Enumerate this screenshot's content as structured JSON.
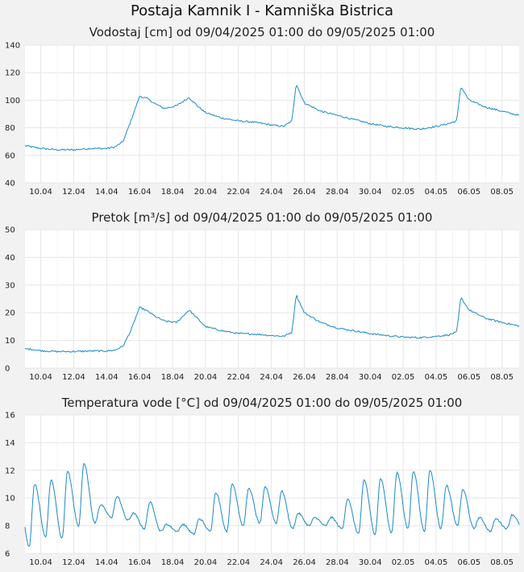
{
  "title": "Postaja Kamnik I - Kamniška Bistrica",
  "charts": [
    {
      "subtitle": "Vodostaj [cm] od 09/04/2025 01:00 do 09/05/2025 01:00"
    },
    {
      "subtitle": "Pretok [m³/s] od 09/04/2025 01:00 do 09/05/2025 01:00"
    },
    {
      "subtitle": "Temperatura vode [°C] od 09/04/2025 01:00 do 09/05/2025 01:00"
    }
  ],
  "chart_data": [
    {
      "type": "line",
      "title": "Vodostaj [cm] od 09/04/2025 01:00 do 09/05/2025 01:00",
      "x_range": [
        "2025-04-09T01:00",
        "2025-05-09T01:00"
      ],
      "ylim": [
        40,
        140
      ],
      "y_ticks": [
        40,
        60,
        80,
        100,
        120,
        140
      ],
      "x_tick_labels": [
        "10.04",
        "12.04",
        "14.04",
        "16.04",
        "18.04",
        "20.04",
        "22.04",
        "24.04",
        "26.04",
        "28.04",
        "30.04",
        "02.05",
        "04.05",
        "06.05",
        "08.05"
      ],
      "grid": true,
      "line_color": "#1a8ac8",
      "series": [
        {
          "x": [
            "2025-04-09T01:00",
            "2025-04-09T12:00",
            "2025-04-10T00:00",
            "2025-04-11T00:00",
            "2025-04-12T00:00",
            "2025-04-13T00:00",
            "2025-04-14T00:00",
            "2025-04-14T12:00",
            "2025-04-15T00:00",
            "2025-04-15T12:00",
            "2025-04-16T00:00",
            "2025-04-16T12:00",
            "2025-04-17T00:00",
            "2025-04-17T12:00",
            "2025-04-18T06:00",
            "2025-04-19T00:00",
            "2025-04-19T12:00",
            "2025-04-20T00:00",
            "2025-04-21T00:00",
            "2025-04-22T00:00",
            "2025-04-23T00:00",
            "2025-04-24T00:00",
            "2025-04-24T18:00",
            "2025-04-25T06:00",
            "2025-04-25T12:00",
            "2025-04-26T00:00",
            "2025-04-27T00:00",
            "2025-04-28T00:00",
            "2025-04-29T00:00",
            "2025-04-30T00:00",
            "2025-05-01T00:00",
            "2025-05-02T00:00",
            "2025-05-03T00:00",
            "2025-05-04T00:00",
            "2025-05-04T18:00",
            "2025-05-05T06:00",
            "2025-05-05T12:00",
            "2025-05-06T00:00",
            "2025-05-07T00:00",
            "2025-05-08T00:00",
            "2025-05-09T01:00"
          ],
          "y": [
            67,
            66,
            65,
            64,
            64,
            65,
            65,
            66,
            70,
            86,
            103,
            101,
            97,
            94,
            96,
            102,
            96,
            91,
            87,
            85,
            84,
            82,
            81,
            85,
            112,
            98,
            92,
            89,
            86,
            83,
            81,
            80,
            79,
            81,
            83,
            85,
            110,
            100,
            95,
            92,
            89
          ]
        }
      ]
    },
    {
      "type": "line",
      "title": "Pretok [m³/s] od 09/04/2025 01:00 do 09/05/2025 01:00",
      "x_range": [
        "2025-04-09T01:00",
        "2025-05-09T01:00"
      ],
      "ylim": [
        0,
        50
      ],
      "y_ticks": [
        0,
        10,
        20,
        30,
        40,
        50
      ],
      "x_tick_labels": [
        "10.04",
        "12.04",
        "14.04",
        "16.04",
        "18.04",
        "20.04",
        "22.04",
        "24.04",
        "26.04",
        "28.04",
        "30.04",
        "02.05",
        "04.05",
        "06.05",
        "08.05"
      ],
      "grid": true,
      "line_color": "#1a8ac8",
      "series": [
        {
          "x": [
            "2025-04-09T01:00",
            "2025-04-09T12:00",
            "2025-04-10T00:00",
            "2025-04-11T00:00",
            "2025-04-12T00:00",
            "2025-04-13T00:00",
            "2025-04-14T00:00",
            "2025-04-14T12:00",
            "2025-04-15T00:00",
            "2025-04-15T12:00",
            "2025-04-16T00:00",
            "2025-04-16T12:00",
            "2025-04-17T00:00",
            "2025-04-17T12:00",
            "2025-04-18T06:00",
            "2025-04-19T00:00",
            "2025-04-19T12:00",
            "2025-04-20T00:00",
            "2025-04-21T00:00",
            "2025-04-22T00:00",
            "2025-04-23T00:00",
            "2025-04-24T00:00",
            "2025-04-24T18:00",
            "2025-04-25T06:00",
            "2025-04-25T12:00",
            "2025-04-26T00:00",
            "2025-04-27T00:00",
            "2025-04-28T00:00",
            "2025-04-29T00:00",
            "2025-04-30T00:00",
            "2025-05-01T00:00",
            "2025-05-02T00:00",
            "2025-05-03T00:00",
            "2025-05-04T00:00",
            "2025-05-04T18:00",
            "2025-05-05T06:00",
            "2025-05-05T12:00",
            "2025-05-06T00:00",
            "2025-05-07T00:00",
            "2025-05-08T00:00",
            "2025-05-09T01:00"
          ],
          "y": [
            7,
            6.8,
            6.3,
            6,
            6,
            6.2,
            6.2,
            6.5,
            8,
            14,
            22,
            20.5,
            18.5,
            17,
            16.5,
            21,
            18,
            15,
            13.5,
            12.5,
            12.3,
            11.8,
            11.5,
            13,
            26.5,
            20,
            16.5,
            14.5,
            13.5,
            12.5,
            11.8,
            11.2,
            11,
            11.5,
            12,
            13,
            25.5,
            21,
            18,
            16.5,
            15.2
          ]
        }
      ]
    },
    {
      "type": "line",
      "title": "Temperatura vode [°C] od 09/04/2025 01:00 do 09/05/2025 01:00",
      "x_range": [
        "2025-04-09T01:00",
        "2025-05-09T01:00"
      ],
      "ylim": [
        6,
        16
      ],
      "y_ticks": [
        6,
        8,
        10,
        12,
        14,
        16
      ],
      "x_tick_labels": [
        "10.04",
        "12.04",
        "14.04",
        "16.04",
        "18.04",
        "20.04",
        "22.04",
        "24.04",
        "26.04",
        "28.04",
        "30.04",
        "02.05",
        "04.05",
        "06.05",
        "08.05"
      ],
      "grid": true,
      "line_color": "#1a8ac8",
      "series": [
        {
          "note_daily": "daily minimum / maximum pairs",
          "days": [
            "2025-04-09",
            "2025-04-10",
            "2025-04-11",
            "2025-04-12",
            "2025-04-13",
            "2025-04-14",
            "2025-04-15",
            "2025-04-16",
            "2025-04-17",
            "2025-04-18",
            "2025-04-19",
            "2025-04-20",
            "2025-04-21",
            "2025-04-22",
            "2025-04-23",
            "2025-04-24",
            "2025-04-25",
            "2025-04-26",
            "2025-04-27",
            "2025-04-28",
            "2025-04-29",
            "2025-04-30",
            "2025-05-01",
            "2025-05-02",
            "2025-05-03",
            "2025-05-04",
            "2025-05-05",
            "2025-05-06",
            "2025-05-07",
            "2025-05-08"
          ],
          "min": [
            6.5,
            7.2,
            7.1,
            8.0,
            8.2,
            8.6,
            8.4,
            7.8,
            7.6,
            7.6,
            7.4,
            7.6,
            7.6,
            8.0,
            8.2,
            8.2,
            7.8,
            8.0,
            8.0,
            7.8,
            7.4,
            7.4,
            7.5,
            7.8,
            7.6,
            7.8,
            8.0,
            7.8,
            7.6,
            7.8
          ],
          "max": [
            11.0,
            11.3,
            11.9,
            12.5,
            9.5,
            10.1,
            8.9,
            9.7,
            8.1,
            8.1,
            8.5,
            10.4,
            11.0,
            10.7,
            10.8,
            10.5,
            8.9,
            8.6,
            8.6,
            9.9,
            11.3,
            11.4,
            11.8,
            11.9,
            12.0,
            10.9,
            10.6,
            8.6,
            8.5,
            8.8
          ]
        }
      ]
    }
  ]
}
